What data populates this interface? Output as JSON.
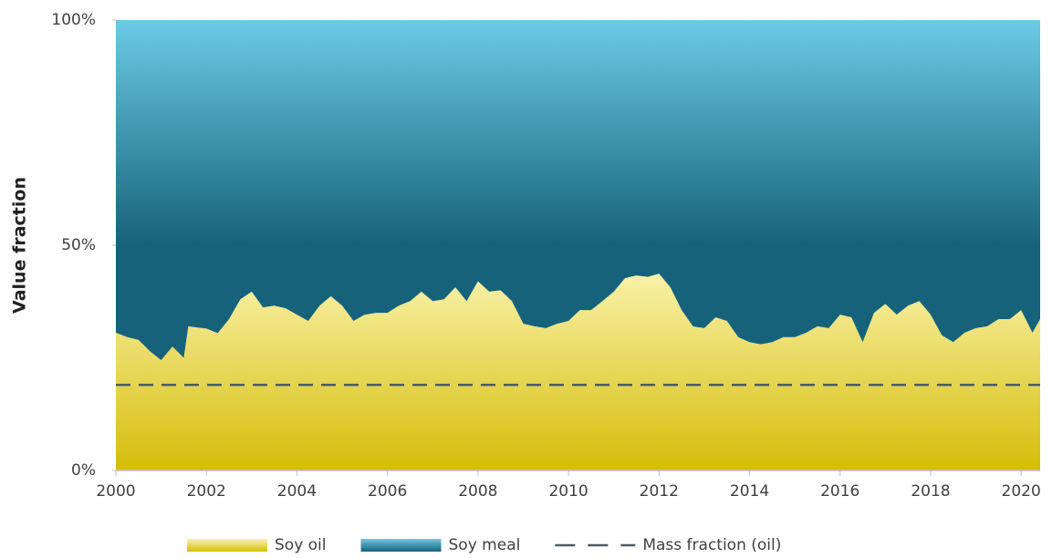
{
  "chart_data": {
    "type": "stacked_area",
    "y_label": "Value fraction",
    "x": [
      2000,
      2000.25,
      2000.5,
      2000.75,
      2001,
      2001.25,
      2001.5,
      2001.6,
      2002,
      2002.25,
      2002.5,
      2002.75,
      2003,
      2003.25,
      2003.5,
      2003.75,
      2004,
      2004.25,
      2004.5,
      2004.75,
      2005,
      2005.25,
      2005.5,
      2005.75,
      2006,
      2006.25,
      2006.5,
      2006.75,
      2007,
      2007.25,
      2007.5,
      2007.75,
      2008,
      2008.25,
      2008.5,
      2008.75,
      2009,
      2009.25,
      2009.5,
      2009.75,
      2010,
      2010.25,
      2010.5,
      2010.75,
      2011,
      2011.25,
      2011.5,
      2011.75,
      2012,
      2012.25,
      2012.5,
      2012.75,
      2013,
      2013.25,
      2013.5,
      2013.75,
      2014,
      2014.25,
      2014.5,
      2014.75,
      2015,
      2015.25,
      2015.5,
      2015.75,
      2016,
      2016.25,
      2016.5,
      2016.75,
      2017,
      2017.25,
      2017.5,
      2017.75,
      2018,
      2018.25,
      2018.5,
      2018.75,
      2019,
      2019.25,
      2019.5,
      2019.75,
      2020,
      2020.25,
      2020.42
    ],
    "series": [
      {
        "name": "Soy oil",
        "color": [
          "#f9f3ad",
          "#d6bd08"
        ],
        "values": [
          30.6,
          29.6,
          29,
          26.5,
          24.5,
          27.5,
          25,
          32,
          31.5,
          30.5,
          33.6,
          38,
          39.7,
          36.2,
          36.6,
          36,
          34.6,
          33.2,
          36.6,
          38.7,
          36.6,
          33.2,
          34.6,
          35,
          35,
          36.6,
          37.6,
          39.7,
          37.6,
          38,
          40.7,
          37.6,
          42,
          39.7,
          40,
          37.6,
          32.6,
          32,
          31.6,
          32.6,
          33.2,
          35.6,
          35.6,
          37.6,
          39.7,
          42.7,
          43.3,
          43,
          43.7,
          40.7,
          35.6,
          32,
          31.6,
          34,
          33.2,
          29.6,
          28.5,
          28,
          28.5,
          29.6,
          29.6,
          30.6,
          32,
          31.6,
          34.6,
          34,
          28.5,
          35,
          37,
          34.6,
          36.6,
          37.6,
          34.6,
          30,
          28.5,
          30.6,
          31.6,
          32,
          33.6,
          33.6,
          35.6,
          30.6,
          33.6
        ]
      },
      {
        "name": "Soy meal",
        "color": [
          "#6ccbe6",
          "#16627a"
        ],
        "values": [
          69.4,
          70.4,
          71,
          73.5,
          75.5,
          72.5,
          75,
          68,
          68.5,
          69.5,
          66.4,
          62,
          60.3,
          63.8,
          63.4,
          64,
          65.4,
          66.8,
          63.4,
          61.3,
          63.4,
          66.8,
          65.4,
          65,
          65,
          63.4,
          62.4,
          60.3,
          62.4,
          62,
          59.3,
          62.4,
          58,
          60.3,
          60,
          62.4,
          67.4,
          68,
          68.4,
          67.4,
          66.8,
          64.4,
          64.4,
          62.4,
          60.3,
          57.3,
          56.7,
          57,
          56.3,
          59.3,
          64.4,
          68,
          68.4,
          66,
          66.8,
          70.4,
          71.5,
          72,
          71.5,
          70.4,
          70.4,
          69.4,
          68,
          68.4,
          65.4,
          66,
          71.5,
          65,
          63,
          65.4,
          63.4,
          62.4,
          65.4,
          70,
          71.5,
          69.4,
          68.4,
          68,
          66.4,
          66.4,
          64.4,
          69.4,
          66.4
        ]
      }
    ],
    "reference_lines": [
      {
        "name": "Mass fraction (oil)",
        "value": 19,
        "color": "#4a5a66"
      }
    ],
    "xlim": [
      2000,
      2020.42
    ],
    "xticks": [
      2000,
      2002,
      2004,
      2006,
      2008,
      2010,
      2012,
      2014,
      2016,
      2018,
      2020
    ],
    "ylim": [
      0,
      100
    ],
    "yticks": [
      {
        "value": 0,
        "label": "0%"
      },
      {
        "value": 50,
        "label": "50%"
      },
      {
        "value": 100,
        "label": "100%"
      }
    ],
    "legend": "bottom"
  }
}
